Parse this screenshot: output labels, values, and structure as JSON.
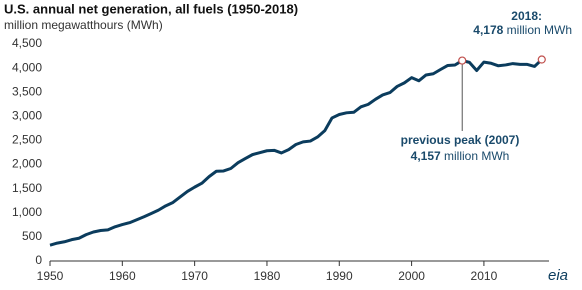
{
  "chart_data": {
    "type": "line",
    "title": "U.S. annual net generation, all fuels (1950-2018)",
    "subtitle": "million megawatthours (MWh)",
    "x": [
      1950,
      1951,
      1952,
      1953,
      1954,
      1955,
      1956,
      1957,
      1958,
      1959,
      1960,
      1961,
      1962,
      1963,
      1964,
      1965,
      1966,
      1967,
      1968,
      1969,
      1970,
      1971,
      1972,
      1973,
      1974,
      1975,
      1976,
      1977,
      1978,
      1979,
      1980,
      1981,
      1982,
      1983,
      1984,
      1985,
      1986,
      1987,
      1988,
      1989,
      1990,
      1991,
      1992,
      1993,
      1994,
      1995,
      1996,
      1997,
      1998,
      1999,
      2000,
      2001,
      2002,
      2003,
      2004,
      2005,
      2006,
      2007,
      2008,
      2009,
      2010,
      2011,
      2012,
      2013,
      2014,
      2015,
      2016,
      2017,
      2018
    ],
    "series": [
      {
        "name": "U.S. annual net generation",
        "color": "#0b3c5d",
        "values": [
          329,
          371,
          399,
          443,
          472,
          547,
          601,
          632,
          645,
          710,
          756,
          794,
          855,
          917,
          984,
          1055,
          1144,
          1214,
          1329,
          1442,
          1532,
          1613,
          1750,
          1861,
          1867,
          1918,
          2038,
          2124,
          2206,
          2247,
          2286,
          2295,
          2241,
          2310,
          2416,
          2470,
          2487,
          2572,
          2704,
          2967,
          3038,
          3073,
          3084,
          3197,
          3248,
          3353,
          3444,
          3492,
          3620,
          3694,
          3802,
          3737,
          3858,
          3883,
          3971,
          4055,
          4065,
          4157,
          4119,
          3950,
          4125,
          4100,
          4048,
          4066,
          4094,
          4078,
          4077,
          4035,
          4178
        ]
      }
    ],
    "xlim": [
      1950,
      2019
    ],
    "xticks": [
      1950,
      1960,
      1970,
      1980,
      1990,
      2000,
      2010
    ],
    "ylim": [
      0,
      4500
    ],
    "yticks": [
      0,
      500,
      {
        "value": 1000,
        "label": "1,000"
      },
      {
        "value": 1500,
        "label": "1,500"
      },
      {
        "value": 2000,
        "label": "2,000"
      },
      {
        "value": 2500,
        "label": "2,500"
      },
      {
        "value": 3000,
        "label": "3,000"
      },
      {
        "value": 3500,
        "label": "3,500"
      },
      {
        "value": 4000,
        "label": "4,000"
      },
      {
        "value": 4500,
        "label": "4,500"
      }
    ],
    "annotations": [
      {
        "label": "2018:",
        "value_text": "4,178",
        "unit": "million MWh"
      },
      {
        "label": "previous peak (2007)",
        "value_text": "4,157",
        "unit": "million MWh"
      }
    ],
    "source_logo": "eia"
  }
}
